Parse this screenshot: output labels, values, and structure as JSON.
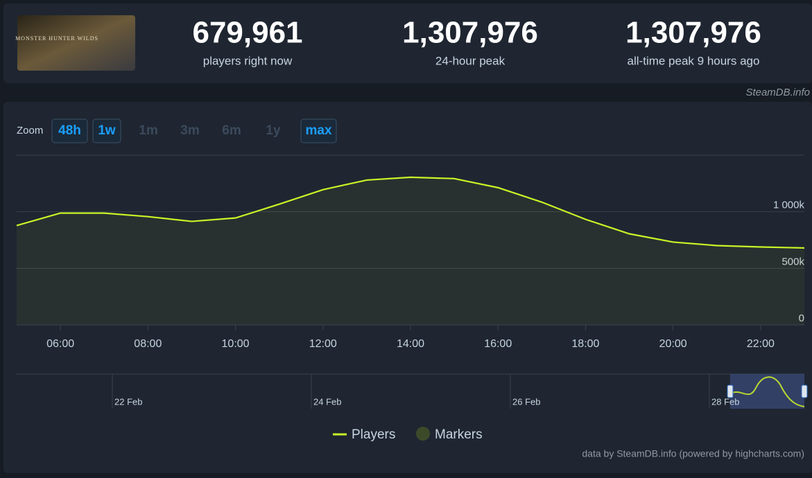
{
  "header": {
    "image_text": "MONSTER HUNTER WILDS",
    "stats": [
      {
        "value": "679,961",
        "label": "players right now"
      },
      {
        "value": "1,307,976",
        "label": "24-hour peak"
      },
      {
        "value": "1,307,976",
        "label": "all-time peak 9 hours ago"
      }
    ]
  },
  "watermark": "SteamDB.info",
  "zoom": {
    "label": "Zoom",
    "buttons": [
      {
        "label": "48h",
        "enabled": true
      },
      {
        "label": "1w",
        "enabled": true
      },
      {
        "label": "1m",
        "enabled": false
      },
      {
        "label": "3m",
        "enabled": false
      },
      {
        "label": "6m",
        "enabled": false
      },
      {
        "label": "1y",
        "enabled": false
      },
      {
        "label": "max",
        "enabled": true
      }
    ]
  },
  "chart_data": {
    "type": "line",
    "x": [
      5,
      6,
      7,
      8,
      9,
      10,
      11,
      12,
      13,
      14,
      15,
      16,
      17,
      18,
      19,
      20,
      21,
      22,
      23
    ],
    "series": [
      {
        "name": "Players",
        "color": "#c8f526",
        "values": [
          878000,
          988000,
          988000,
          957000,
          915000,
          945000,
          1067000,
          1195000,
          1280000,
          1305000,
          1293000,
          1213000,
          1085000,
          933000,
          805000,
          732000,
          701000,
          689000,
          680000
        ]
      }
    ],
    "markers": {
      "name": "Markers",
      "color": "#3d4a2a"
    },
    "xlim": [
      5,
      23
    ],
    "xticks": [
      {
        "value": 6,
        "label": "06:00"
      },
      {
        "value": 8,
        "label": "08:00"
      },
      {
        "value": 10,
        "label": "10:00"
      },
      {
        "value": 12,
        "label": "12:00"
      },
      {
        "value": 14,
        "label": "14:00"
      },
      {
        "value": 16,
        "label": "16:00"
      },
      {
        "value": 18,
        "label": "18:00"
      },
      {
        "value": 20,
        "label": "20:00"
      },
      {
        "value": 22,
        "label": "22:00"
      }
    ],
    "ylim": [
      0,
      1500000
    ],
    "yticks": [
      {
        "value": 0,
        "label": "0"
      },
      {
        "value": 500000,
        "label": "500k"
      },
      {
        "value": 1000000,
        "label": "1 000k"
      }
    ],
    "grid": true
  },
  "navigator": {
    "labels": [
      "22 Feb",
      "24 Feb",
      "26 Feb",
      "28 Feb"
    ]
  },
  "credit": "data by SteamDB.info (powered by highcharts.com)"
}
